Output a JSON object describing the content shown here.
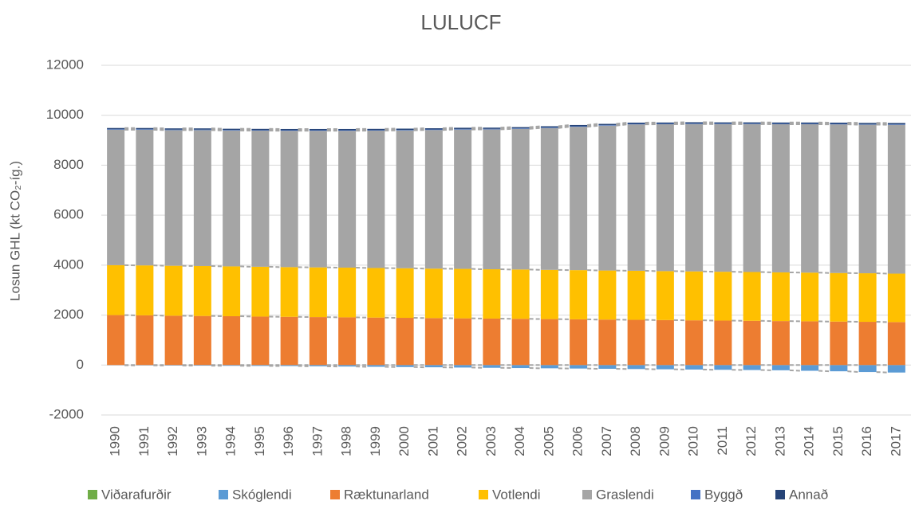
{
  "chart_data": {
    "type": "stacked-bar",
    "title": "LULUCF",
    "y_label": "Losun GHL (kt CO₂-íg.)",
    "categories": [
      "1990",
      "1991",
      "1992",
      "1993",
      "1994",
      "1995",
      "1996",
      "1997",
      "1998",
      "1999",
      "2000",
      "2001",
      "2002",
      "2003",
      "2004",
      "2005",
      "2006",
      "2007",
      "2008",
      "2009",
      "2010",
      "2011",
      "2012",
      "2013",
      "2014",
      "2015",
      "2016",
      "2017"
    ],
    "ylim": [
      -2000,
      12000
    ],
    "yticks": [
      -2000,
      0,
      2000,
      4000,
      6000,
      8000,
      10000,
      12000
    ],
    "grid": true,
    "legend": "bottom",
    "series": [
      {
        "name": "Viðarafurðir",
        "color": "#70ad47",
        "values": [
          0,
          0,
          0,
          0,
          0,
          0,
          0,
          0,
          0,
          0,
          0,
          0,
          0,
          0,
          0,
          0,
          0,
          0,
          0,
          0,
          0,
          0,
          0,
          0,
          0,
          0,
          0,
          0
        ]
      },
      {
        "name": "Skóglendi",
        "color": "#5b9bd5",
        "values": [
          -10,
          -15,
          -20,
          -25,
          -30,
          -35,
          -40,
          -50,
          -60,
          -70,
          -80,
          -90,
          -100,
          -110,
          -120,
          -130,
          -140,
          -150,
          -160,
          -170,
          -180,
          -190,
          -200,
          -210,
          -230,
          -250,
          -280,
          -300
        ]
      },
      {
        "name": "Ræktunarland",
        "color": "#ed7d31",
        "values": [
          2000,
          1990,
          1975,
          1965,
          1955,
          1940,
          1930,
          1920,
          1910,
          1900,
          1890,
          1880,
          1870,
          1860,
          1850,
          1840,
          1830,
          1820,
          1810,
          1800,
          1790,
          1780,
          1770,
          1760,
          1750,
          1740,
          1730,
          1720
        ]
      },
      {
        "name": "Votlendi",
        "color": "#ffc000",
        "values": [
          2000,
          2000,
          2000,
          2000,
          1995,
          1995,
          1990,
          1990,
          1990,
          1985,
          1985,
          1980,
          1980,
          1975,
          1975,
          1970,
          1970,
          1965,
          1965,
          1960,
          1960,
          1955,
          1955,
          1950,
          1950,
          1945,
          1945,
          1940
        ]
      },
      {
        "name": "Graslendi",
        "color": "#a5a5a5",
        "values": [
          5420,
          5430,
          5430,
          5440,
          5440,
          5450,
          5460,
          5470,
          5480,
          5500,
          5520,
          5550,
          5580,
          5600,
          5630,
          5680,
          5740,
          5800,
          5860,
          5880,
          5900,
          5910,
          5920,
          5930,
          5940,
          5950,
          5950,
          5960
        ]
      },
      {
        "name": "Byggð",
        "color": "#4472c4",
        "values": [
          20,
          20,
          20,
          20,
          20,
          20,
          20,
          20,
          20,
          20,
          20,
          20,
          20,
          20,
          20,
          20,
          20,
          20,
          20,
          20,
          20,
          20,
          20,
          20,
          20,
          20,
          20,
          20
        ]
      },
      {
        "name": "Annað",
        "color": "#264478",
        "values": [
          50,
          50,
          50,
          50,
          50,
          50,
          50,
          50,
          50,
          50,
          50,
          50,
          50,
          50,
          50,
          50,
          50,
          50,
          50,
          50,
          50,
          50,
          50,
          50,
          50,
          50,
          50,
          50
        ]
      }
    ]
  }
}
